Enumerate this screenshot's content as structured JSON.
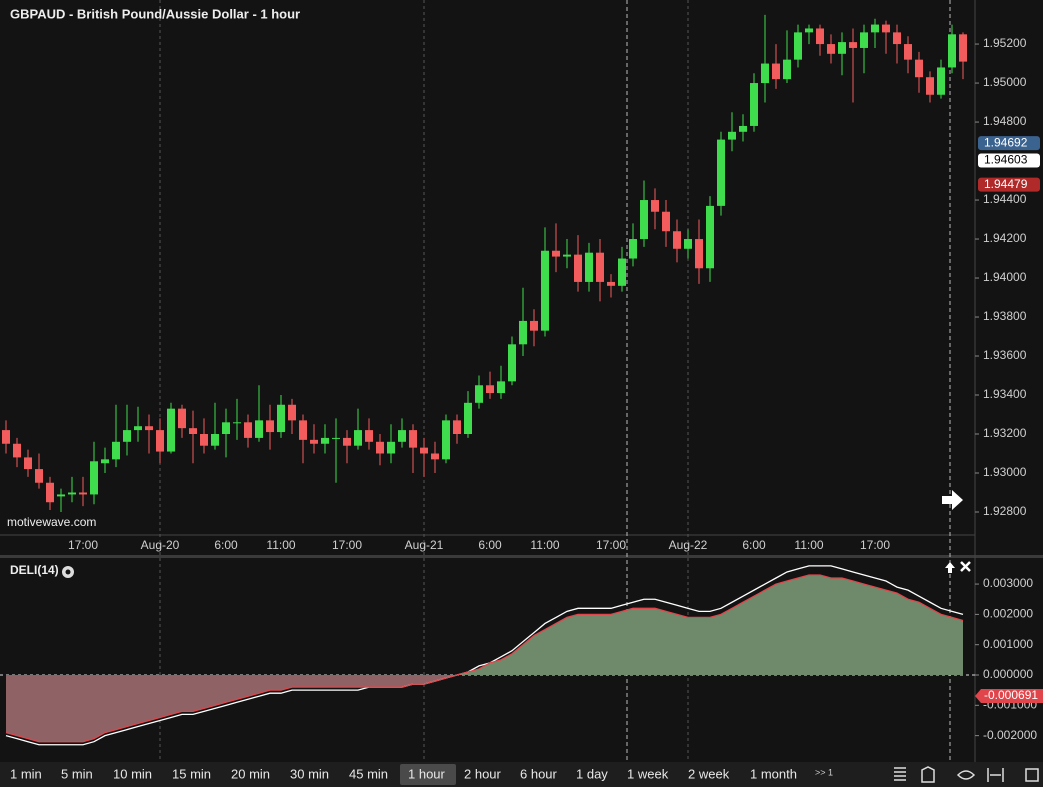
{
  "chart_data": [
    {
      "type": "candlestick",
      "title": "GBPAUD - British Pound/Aussie Dollar - 1 hour",
      "watermark": "motivewave.com",
      "up_color": "#3fdc4e",
      "down_color": "#f25c5c",
      "categories": [
        null,
        null,
        null,
        null,
        null,
        null,
        null,
        "17:00",
        null,
        null,
        null,
        null,
        null,
        null,
        "Aug-20",
        null,
        null,
        null,
        null,
        null,
        "6:00",
        null,
        null,
        null,
        null,
        "11:00",
        null,
        null,
        null,
        null,
        null,
        "17:00",
        null,
        null,
        null,
        null,
        null,
        null,
        "Aug-21",
        null,
        null,
        null,
        null,
        null,
        "6:00",
        null,
        null,
        null,
        null,
        "11:00",
        null,
        null,
        null,
        null,
        null,
        "17:00",
        null,
        null,
        null,
        null,
        null,
        null,
        "Aug-22",
        null,
        null,
        null,
        null,
        null,
        "6:00",
        null,
        null,
        null,
        null,
        "11:00",
        null,
        null,
        null,
        null,
        null,
        "17:00",
        null,
        null,
        null,
        null,
        null,
        null,
        null,
        null
      ],
      "open": [
        1.9322,
        1.9315,
        1.9308,
        1.9302,
        1.9295,
        1.9288,
        1.9289,
        1.929,
        1.9289,
        1.9305,
        1.9307,
        1.9316,
        1.9322,
        1.9324,
        1.9322,
        1.9311,
        1.9333,
        1.9323,
        1.932,
        1.9314,
        1.932,
        1.9326,
        1.9326,
        1.9318,
        1.9327,
        1.9321,
        1.9335,
        1.9327,
        1.9317,
        1.9315,
        1.9318,
        1.9318,
        1.9314,
        1.9322,
        1.9316,
        1.931,
        1.9316,
        1.9322,
        1.9313,
        1.931,
        1.9307,
        1.9327,
        1.932,
        1.9336,
        1.9345,
        1.9341,
        1.9347,
        1.9366,
        1.9378,
        1.9373,
        1.9414,
        1.9411,
        1.9412,
        1.9398,
        1.9413,
        1.9398,
        1.9396,
        1.941,
        1.942,
        1.944,
        1.9434,
        1.9424,
        1.9415,
        1.942,
        1.9405,
        1.9437,
        1.9471,
        1.9475,
        1.9478,
        1.95,
        1.951,
        1.9502,
        1.9512,
        1.9526,
        1.9528,
        1.952,
        1.9515,
        1.9521,
        1.9518,
        1.9526,
        1.953,
        1.9526,
        1.952,
        1.9512,
        1.9503,
        1.9494,
        1.9508,
        1.9525
      ],
      "high": [
        1.9327,
        1.9318,
        1.9312,
        1.931,
        1.9298,
        1.9292,
        1.9298,
        1.9298,
        1.9316,
        1.9313,
        1.9335,
        1.9335,
        1.9334,
        1.933,
        1.9328,
        1.9336,
        1.9335,
        1.9332,
        1.9328,
        1.9336,
        1.9333,
        1.9338,
        1.933,
        1.9345,
        1.9335,
        1.934,
        1.9338,
        1.933,
        1.9325,
        1.9325,
        1.9328,
        1.9322,
        1.9333,
        1.9328,
        1.932,
        1.9325,
        1.9328,
        1.9325,
        1.9318,
        1.9316,
        1.933,
        1.933,
        1.9342,
        1.935,
        1.9352,
        1.9355,
        1.937,
        1.9395,
        1.9384,
        1.9426,
        1.9428,
        1.942,
        1.9422,
        1.9418,
        1.942,
        1.9402,
        1.9416,
        1.9428,
        1.945,
        1.9446,
        1.944,
        1.943,
        1.9425,
        1.943,
        1.9442,
        1.9475,
        1.9485,
        1.9484,
        1.9505,
        1.9535,
        1.952,
        1.9527,
        1.953,
        1.953,
        1.953,
        1.9525,
        1.9526,
        1.9528,
        1.953,
        1.9533,
        1.9532,
        1.953,
        1.9524,
        1.9516,
        1.9506,
        1.9512,
        1.953,
        1.9526
      ],
      "low": [
        1.931,
        1.9303,
        1.9298,
        1.9292,
        1.9281,
        1.928,
        1.9285,
        1.9283,
        1.9284,
        1.93,
        1.9303,
        1.9309,
        1.9316,
        1.931,
        1.9305,
        1.931,
        1.9318,
        1.9305,
        1.931,
        1.9312,
        1.9308,
        1.9317,
        1.9313,
        1.9316,
        1.9312,
        1.9318,
        1.932,
        1.9305,
        1.931,
        1.931,
        1.9295,
        1.9305,
        1.9312,
        1.9312,
        1.9304,
        1.9305,
        1.9313,
        1.93,
        1.9298,
        1.93,
        1.9305,
        1.9315,
        1.9318,
        1.9333,
        1.9338,
        1.9338,
        1.9345,
        1.936,
        1.9365,
        1.937,
        1.9403,
        1.9405,
        1.9393,
        1.9393,
        1.9388,
        1.939,
        1.9393,
        1.9406,
        1.9416,
        1.9425,
        1.9416,
        1.9408,
        1.941,
        1.9397,
        1.9398,
        1.9432,
        1.9465,
        1.947,
        1.9475,
        1.949,
        1.9497,
        1.95,
        1.9508,
        1.952,
        1.9514,
        1.951,
        1.9504,
        1.949,
        1.9505,
        1.9518,
        1.9515,
        1.951,
        1.9505,
        1.9495,
        1.949,
        1.9492,
        1.9505,
        1.9502
      ],
      "close": [
        1.9315,
        1.9308,
        1.9302,
        1.9295,
        1.9285,
        1.9289,
        1.929,
        1.9289,
        1.9306,
        1.9307,
        1.9316,
        1.9322,
        1.9324,
        1.9322,
        1.9311,
        1.9333,
        1.9323,
        1.932,
        1.9314,
        1.932,
        1.9326,
        1.9326,
        1.9318,
        1.9327,
        1.9321,
        1.9335,
        1.9327,
        1.9317,
        1.9315,
        1.9318,
        1.9318,
        1.9314,
        1.9322,
        1.9316,
        1.931,
        1.9316,
        1.9322,
        1.9313,
        1.931,
        1.9307,
        1.9327,
        1.932,
        1.9336,
        1.9345,
        1.9341,
        1.9347,
        1.9366,
        1.9378,
        1.9373,
        1.9414,
        1.9411,
        1.9412,
        1.9398,
        1.9413,
        1.9398,
        1.9396,
        1.941,
        1.942,
        1.944,
        1.9434,
        1.9424,
        1.9415,
        1.942,
        1.9405,
        1.9437,
        1.9471,
        1.9475,
        1.9478,
        1.95,
        1.951,
        1.9502,
        1.9512,
        1.9526,
        1.9528,
        1.952,
        1.9515,
        1.9521,
        1.9518,
        1.9526,
        1.953,
        1.9526,
        1.952,
        1.9512,
        1.9503,
        1.9494,
        1.9508,
        1.9525,
        1.9511
      ],
      "ylim": [
        1.92682,
        1.95426
      ],
      "yticks": [
        {
          "value": 1.928,
          "label": "1.92800"
        },
        {
          "value": 1.93,
          "label": "1.93000"
        },
        {
          "value": 1.932,
          "label": "1.93200"
        },
        {
          "value": 1.934,
          "label": "1.93400"
        },
        {
          "value": 1.936,
          "label": "1.93600"
        },
        {
          "value": 1.938,
          "label": "1.93800"
        },
        {
          "value": 1.94,
          "label": "1.94000"
        },
        {
          "value": 1.942,
          "label": "1.94200"
        },
        {
          "value": 1.944,
          "label": "1.94400"
        },
        {
          "value": 1.948,
          "label": "1.94800"
        },
        {
          "value": 1.95,
          "label": "1.95000"
        },
        {
          "value": 1.952,
          "label": "1.95200"
        }
      ],
      "price_tags": [
        {
          "value": 1.94692,
          "color": "#3b6390",
          "text_color": "#ffffff"
        },
        {
          "value": 1.94603,
          "color": "#ffffff",
          "text_color": "#000000"
        },
        {
          "value": 1.94479,
          "color": "#b02a2a",
          "text_color": "#ffffff"
        }
      ]
    },
    {
      "type": "line",
      "title": "DELI(14)",
      "series": [
        {
          "color": "#ffffff",
          "values": [
            -0.002,
            -0.0021,
            -0.0022,
            -0.0023,
            -0.0023,
            -0.0023,
            -0.0023,
            -0.0023,
            -0.0022,
            -0.002,
            -0.0019,
            -0.0018,
            -0.0017,
            -0.0016,
            -0.0015,
            -0.0014,
            -0.0013,
            -0.0013,
            -0.0012,
            -0.0011,
            -0.001,
            -0.0009,
            -0.0008,
            -0.0007,
            -0.0006,
            -0.0006,
            -0.0005,
            -0.0005,
            -0.0005,
            -0.0005,
            -0.0005,
            -0.0005,
            -0.0005,
            -0.0004,
            -0.0004,
            -0.0004,
            -0.0004,
            -0.0003,
            -0.0003,
            -0.0002,
            -0.0001,
            0,
            0.0001,
            0.0003,
            0.0004,
            0.0006,
            0.0008,
            0.0011,
            0.0014,
            0.0017,
            0.0019,
            0.0021,
            0.0022,
            0.0022,
            0.0022,
            0.0022,
            0.0023,
            0.0024,
            0.0025,
            0.0025,
            0.0024,
            0.0023,
            0.0022,
            0.0021,
            0.0021,
            0.0022,
            0.0024,
            0.0026,
            0.0028,
            0.003,
            0.0032,
            0.0034,
            0.0035,
            0.0036,
            0.0036,
            0.0036,
            0.0035,
            0.0034,
            0.0033,
            0.0032,
            0.0031,
            0.0029,
            0.0028,
            0.0026,
            0.0024,
            0.0022,
            0.0021,
            0.002
          ]
        },
        {
          "color": "#e0454b",
          "fill": true,
          "values": [
            -0.0019,
            -0.002,
            -0.0021,
            -0.0022,
            -0.0022,
            -0.0022,
            -0.0022,
            -0.0022,
            -0.0021,
            -0.0019,
            -0.0018,
            -0.0017,
            -0.0016,
            -0.0015,
            -0.0014,
            -0.0013,
            -0.0012,
            -0.0012,
            -0.0011,
            -0.001,
            -0.0009,
            -0.0008,
            -0.0007,
            -0.0006,
            -0.0005,
            -0.0005,
            -0.0004,
            -0.0004,
            -0.0004,
            -0.0004,
            -0.0004,
            -0.0004,
            -0.0004,
            -0.0004,
            -0.0004,
            -0.0004,
            -0.0004,
            -0.0003,
            -0.0003,
            -0.0002,
            -0.0001,
            0,
            0.0001,
            0.0002,
            0.0004,
            0.0005,
            0.0007,
            0.001,
            0.0013,
            0.0015,
            0.0017,
            0.0019,
            0.002,
            0.002,
            0.002,
            0.002,
            0.0021,
            0.0022,
            0.0022,
            0.0022,
            0.0021,
            0.002,
            0.0019,
            0.0019,
            0.0019,
            0.002,
            0.0022,
            0.0024,
            0.0026,
            0.0028,
            0.003,
            0.0031,
            0.0032,
            0.0033,
            0.0033,
            0.0032,
            0.0032,
            0.0031,
            0.003,
            0.0029,
            0.0028,
            0.0027,
            0.0025,
            0.0024,
            0.0022,
            0.002,
            0.0019,
            0.0018
          ]
        }
      ],
      "up_fill": "#6f8a6a",
      "down_fill": "#8f6266",
      "ylim": [
        -0.00287,
        0.00386
      ],
      "yticks": [
        {
          "value": 0.003,
          "label": "0.003000"
        },
        {
          "value": 0.002,
          "label": "0.002000"
        },
        {
          "value": 0.001,
          "label": "0.001000"
        },
        {
          "value": 0,
          "label": "0.000000"
        },
        {
          "value": -0.001,
          "label": "-0.001000"
        },
        {
          "value": -0.002,
          "label": "-0.002000"
        }
      ],
      "value_tag": -0.000691
    }
  ],
  "toolbar": {
    "items": [
      "1 min",
      "5 min",
      "10 min",
      "15 min",
      "20 min",
      "30 min",
      "45 min",
      "1 hour",
      "2 hour",
      "6 hour",
      "1 day",
      "1 week",
      "2 week",
      "1 month"
    ],
    "selected_index": 7,
    "more": ">> 1"
  }
}
